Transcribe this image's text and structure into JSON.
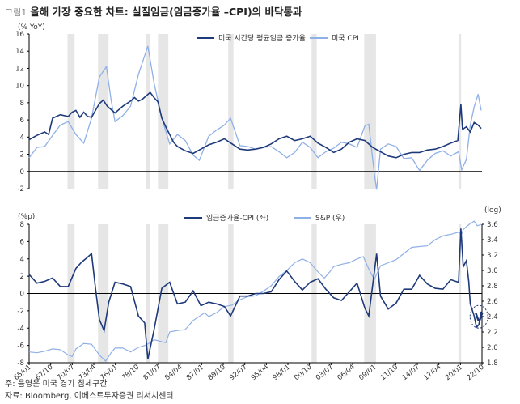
{
  "header": {
    "figure_label": "그림1",
    "title": "올해 가장 중요한 차트: 실질임금(임금증가율 –CPI)의 바닥통과"
  },
  "footnotes": {
    "note": "주: 음영은 미국 경기 침체구간",
    "source": "자료: Bloomberg, 이베스트투자증권 리서치센터"
  },
  "colors": {
    "wage": "#1f3a7a",
    "cpi": "#8fb0e6",
    "sp": "#8fb0e6",
    "realwage": "#1f3a7a",
    "recession": "#e6e6e6",
    "axis": "#000000"
  },
  "chart_data": [
    {
      "type": "line",
      "ylabel": "(% YoY)",
      "ylim": [
        -2,
        16
      ],
      "yticks": [
        -2,
        0,
        2,
        4,
        6,
        8,
        10,
        12,
        14,
        16
      ],
      "xlim": [
        1965.0,
        2023.0
      ],
      "recessions": [
        [
          1969.92,
          1970.83
        ],
        [
          1973.83,
          1975.17
        ],
        [
          1980.0,
          1980.5
        ],
        [
          1981.5,
          1982.83
        ],
        [
          1990.5,
          1991.17
        ],
        [
          2001.17,
          2001.83
        ],
        [
          2007.92,
          2009.42
        ],
        [
          2020.08,
          2020.33
        ]
      ],
      "series": [
        {
          "name": "미국 시간당 평균임금 증가율",
          "color": "#1f3a7a",
          "x": [
            1965.0,
            1966.0,
            1967.0,
            1967.5,
            1968.0,
            1969.0,
            1970.0,
            1970.5,
            1971.0,
            1971.5,
            1972.0,
            1972.5,
            1973.0,
            1974.0,
            1974.5,
            1975.0,
            1975.5,
            1976.0,
            1977.0,
            1978.0,
            1978.5,
            1979.0,
            1979.5,
            1980.0,
            1980.5,
            1981.0,
            1981.5,
            1982.0,
            1982.5,
            1983.0,
            1983.5,
            1984.0,
            1985.0,
            1986.0,
            1987.0,
            1988.0,
            1989.0,
            1990.0,
            1991.0,
            1992.0,
            1993.0,
            1994.0,
            1995.0,
            1996.0,
            1997.0,
            1998.0,
            1999.0,
            2000.0,
            2001.0,
            2002.0,
            2003.0,
            2004.0,
            2005.0,
            2006.0,
            2007.0,
            2008.0,
            2009.0,
            2010.0,
            2011.0,
            2012.0,
            2013.0,
            2014.0,
            2015.0,
            2016.0,
            2017.0,
            2018.0,
            2019.0,
            2019.9,
            2020.3,
            2020.5,
            2021.0,
            2021.5,
            2022.0,
            2022.5,
            2022.9
          ],
          "y": [
            3.7,
            4.2,
            4.6,
            4.3,
            6.2,
            6.6,
            6.4,
            6.9,
            7.1,
            6.3,
            6.9,
            6.4,
            6.3,
            7.9,
            8.3,
            7.6,
            7.2,
            6.8,
            7.6,
            8.2,
            8.6,
            8.2,
            8.4,
            8.8,
            9.2,
            8.6,
            8.1,
            6.2,
            5.2,
            4.3,
            3.4,
            2.9,
            2.4,
            2.1,
            2.6,
            3.1,
            3.4,
            3.8,
            3.2,
            2.6,
            2.5,
            2.6,
            2.8,
            3.2,
            3.8,
            4.1,
            3.6,
            3.8,
            4.1,
            3.3,
            2.8,
            2.2,
            2.6,
            3.4,
            3.8,
            3.6,
            2.8,
            2.3,
            1.8,
            1.6,
            2.0,
            2.2,
            2.2,
            2.5,
            2.6,
            2.9,
            3.3,
            3.6,
            7.8,
            4.9,
            5.2,
            4.6,
            5.7,
            5.4,
            5.0
          ]
        },
        {
          "name": "미국 CPI",
          "color": "#8fb0e6",
          "x": [
            1965.0,
            1966.0,
            1967.0,
            1968.0,
            1969.0,
            1970.0,
            1971.0,
            1972.0,
            1973.0,
            1974.0,
            1974.9,
            1975.5,
            1976.0,
            1977.0,
            1978.0,
            1979.0,
            1980.2,
            1981.0,
            1982.0,
            1983.0,
            1984.0,
            1985.0,
            1986.0,
            1986.8,
            1988.0,
            1989.0,
            1990.0,
            1990.8,
            1992.0,
            1993.0,
            1994.0,
            1995.0,
            1996.0,
            1997.0,
            1998.0,
            1999.0,
            2000.0,
            2001.0,
            2002.0,
            2003.0,
            2004.0,
            2005.0,
            2006.0,
            2007.0,
            2008.0,
            2008.5,
            2009.2,
            2009.5,
            2010.0,
            2011.0,
            2012.0,
            2013.0,
            2014.0,
            2015.0,
            2016.0,
            2017.0,
            2018.0,
            2019.0,
            2020.0,
            2020.4,
            2021.0,
            2021.5,
            2022.0,
            2022.5,
            2022.9
          ],
          "y": [
            1.6,
            2.8,
            2.9,
            4.2,
            5.4,
            5.8,
            4.3,
            3.3,
            6.2,
            11.0,
            12.2,
            8.3,
            5.8,
            6.5,
            7.6,
            11.3,
            14.6,
            10.3,
            6.2,
            3.2,
            4.3,
            3.6,
            1.9,
            1.3,
            4.1,
            4.8,
            5.4,
            6.2,
            3.0,
            2.9,
            2.6,
            2.8,
            2.9,
            2.3,
            1.6,
            2.2,
            3.4,
            2.8,
            1.6,
            2.3,
            2.7,
            3.4,
            3.2,
            2.8,
            5.3,
            5.5,
            -0.2,
            -2.1,
            2.6,
            3.2,
            2.9,
            1.5,
            1.6,
            0.1,
            1.3,
            2.1,
            2.4,
            1.8,
            2.3,
            0.2,
            1.4,
            5.4,
            7.5,
            9.0,
            7.1
          ]
        }
      ]
    },
    {
      "type": "line",
      "ylabel": "(%p)",
      "ylabel_right": "(log)",
      "ylim": [
        -8,
        8
      ],
      "yticks": [
        -8,
        -6,
        -4,
        -2,
        0,
        2,
        4,
        6,
        8
      ],
      "ylim_right": [
        1.8,
        3.6
      ],
      "yticks_right": [
        1.8,
        2.0,
        2.2,
        2.4,
        2.6,
        2.8,
        3.0,
        3.2,
        3.4,
        3.6
      ],
      "xlim": [
        1965.0,
        2023.0
      ],
      "xticks": [
        "65/01",
        "67/10",
        "70/07",
        "73/04",
        "76/01",
        "78/10",
        "81/07",
        "84/04",
        "87/01",
        "89/10",
        "92/07",
        "95/04",
        "98/01",
        "00/10",
        "03/07",
        "06/04",
        "09/01",
        "11/10",
        "14/07",
        "17/04",
        "20/01",
        "22/10"
      ],
      "recessions": [
        [
          1969.92,
          1970.83
        ],
        [
          1973.83,
          1975.17
        ],
        [
          1980.0,
          1980.5
        ],
        [
          1981.5,
          1982.83
        ],
        [
          1990.5,
          1991.17
        ],
        [
          2001.17,
          2001.83
        ],
        [
          2007.92,
          2009.42
        ],
        [
          2020.08,
          2020.33
        ]
      ],
      "annotation": {
        "text": "V",
        "x": 2022.3,
        "y": -2.5
      },
      "series": [
        {
          "name": "임금증가율-CPI (좌)",
          "axis": "left",
          "color": "#1f3a7a",
          "x": [
            1965.0,
            1966.0,
            1967.0,
            1968.0,
            1969.0,
            1970.0,
            1971.0,
            1971.7,
            1972.5,
            1973.0,
            1973.5,
            1974.0,
            1974.6,
            1975.2,
            1976.0,
            1977.0,
            1978.0,
            1979.0,
            1979.8,
            1980.2,
            1981.0,
            1982.0,
            1983.0,
            1984.0,
            1985.0,
            1986.0,
            1987.0,
            1988.0,
            1989.0,
            1990.0,
            1990.8,
            1992.0,
            1993.0,
            1994.0,
            1995.0,
            1996.0,
            1997.0,
            1998.0,
            1999.0,
            2000.0,
            2001.0,
            2002.0,
            2003.0,
            2004.0,
            2005.0,
            2006.0,
            2007.0,
            2008.0,
            2008.5,
            2009.3,
            2009.5,
            2010.0,
            2011.0,
            2012.0,
            2013.0,
            2014.0,
            2015.0,
            2016.0,
            2017.0,
            2018.0,
            2019.0,
            2020.0,
            2020.3,
            2020.6,
            2021.0,
            2021.3,
            2021.5,
            2022.0,
            2022.3,
            2022.6,
            2022.9
          ],
          "y": [
            2.2,
            1.2,
            1.4,
            1.8,
            0.8,
            0.8,
            2.9,
            3.6,
            4.2,
            4.6,
            0.6,
            -3.0,
            -4.3,
            -1.0,
            1.3,
            1.1,
            0.8,
            -2.6,
            -3.4,
            -7.6,
            -4.2,
            0.6,
            1.3,
            -1.2,
            -1.0,
            0.3,
            -1.4,
            -1.0,
            -1.2,
            -1.5,
            -2.6,
            -0.3,
            -0.3,
            0.0,
            0.0,
            0.2,
            1.6,
            2.6,
            1.4,
            0.4,
            1.3,
            1.7,
            0.5,
            -0.5,
            -0.8,
            0.2,
            1.2,
            -1.7,
            -2.6,
            3.1,
            4.6,
            -0.3,
            -1.8,
            -1.1,
            0.5,
            0.5,
            2.1,
            1.1,
            0.6,
            0.5,
            1.6,
            1.3,
            7.5,
            3.1,
            3.8,
            1.4,
            -1.2,
            -2.6,
            -3.9,
            -3.6,
            -2.1
          ]
        },
        {
          "name": "S&P (우)",
          "axis": "right",
          "color": "#8fb0e6",
          "x": [
            1965.0,
            1966.0,
            1967.0,
            1968.0,
            1969.0,
            1970.0,
            1970.5,
            1971.0,
            1972.0,
            1973.0,
            1974.0,
            1974.8,
            1975.5,
            1976.0,
            1977.0,
            1978.0,
            1979.0,
            1980.0,
            1981.0,
            1982.5,
            1983.0,
            1984.0,
            1985.0,
            1986.0,
            1987.5,
            1988.0,
            1989.0,
            1990.0,
            1991.0,
            1992.0,
            1993.0,
            1994.0,
            1995.0,
            1996.0,
            1997.0,
            1998.0,
            1999.0,
            2000.0,
            2001.0,
            2002.0,
            2002.8,
            2003.5,
            2004.0,
            2005.0,
            2006.0,
            2007.0,
            2007.8,
            2008.5,
            2009.2,
            2009.5,
            2010.0,
            2011.0,
            2012.0,
            2013.0,
            2014.0,
            2015.0,
            2016.0,
            2017.0,
            2018.0,
            2019.0,
            2020.1,
            2020.3,
            2020.6,
            2021.0,
            2021.5,
            2022.0,
            2022.4,
            2022.9
          ],
          "y": [
            1.94,
            1.93,
            1.95,
            1.98,
            1.97,
            1.9,
            1.88,
            1.98,
            2.05,
            2.04,
            1.9,
            1.82,
            1.93,
            1.99,
            1.99,
            1.94,
            2.0,
            2.03,
            2.1,
            2.06,
            2.2,
            2.22,
            2.23,
            2.35,
            2.45,
            2.4,
            2.45,
            2.53,
            2.55,
            2.62,
            2.66,
            2.67,
            2.73,
            2.8,
            2.92,
            3.0,
            3.1,
            3.15,
            3.1,
            2.98,
            2.9,
            2.98,
            3.05,
            3.08,
            3.1,
            3.15,
            3.18,
            3.02,
            2.88,
            2.95,
            3.06,
            3.1,
            3.14,
            3.22,
            3.3,
            3.31,
            3.32,
            3.4,
            3.45,
            3.47,
            3.5,
            3.45,
            3.53,
            3.57,
            3.61,
            3.64,
            3.58,
            3.6
          ]
        }
      ]
    }
  ]
}
